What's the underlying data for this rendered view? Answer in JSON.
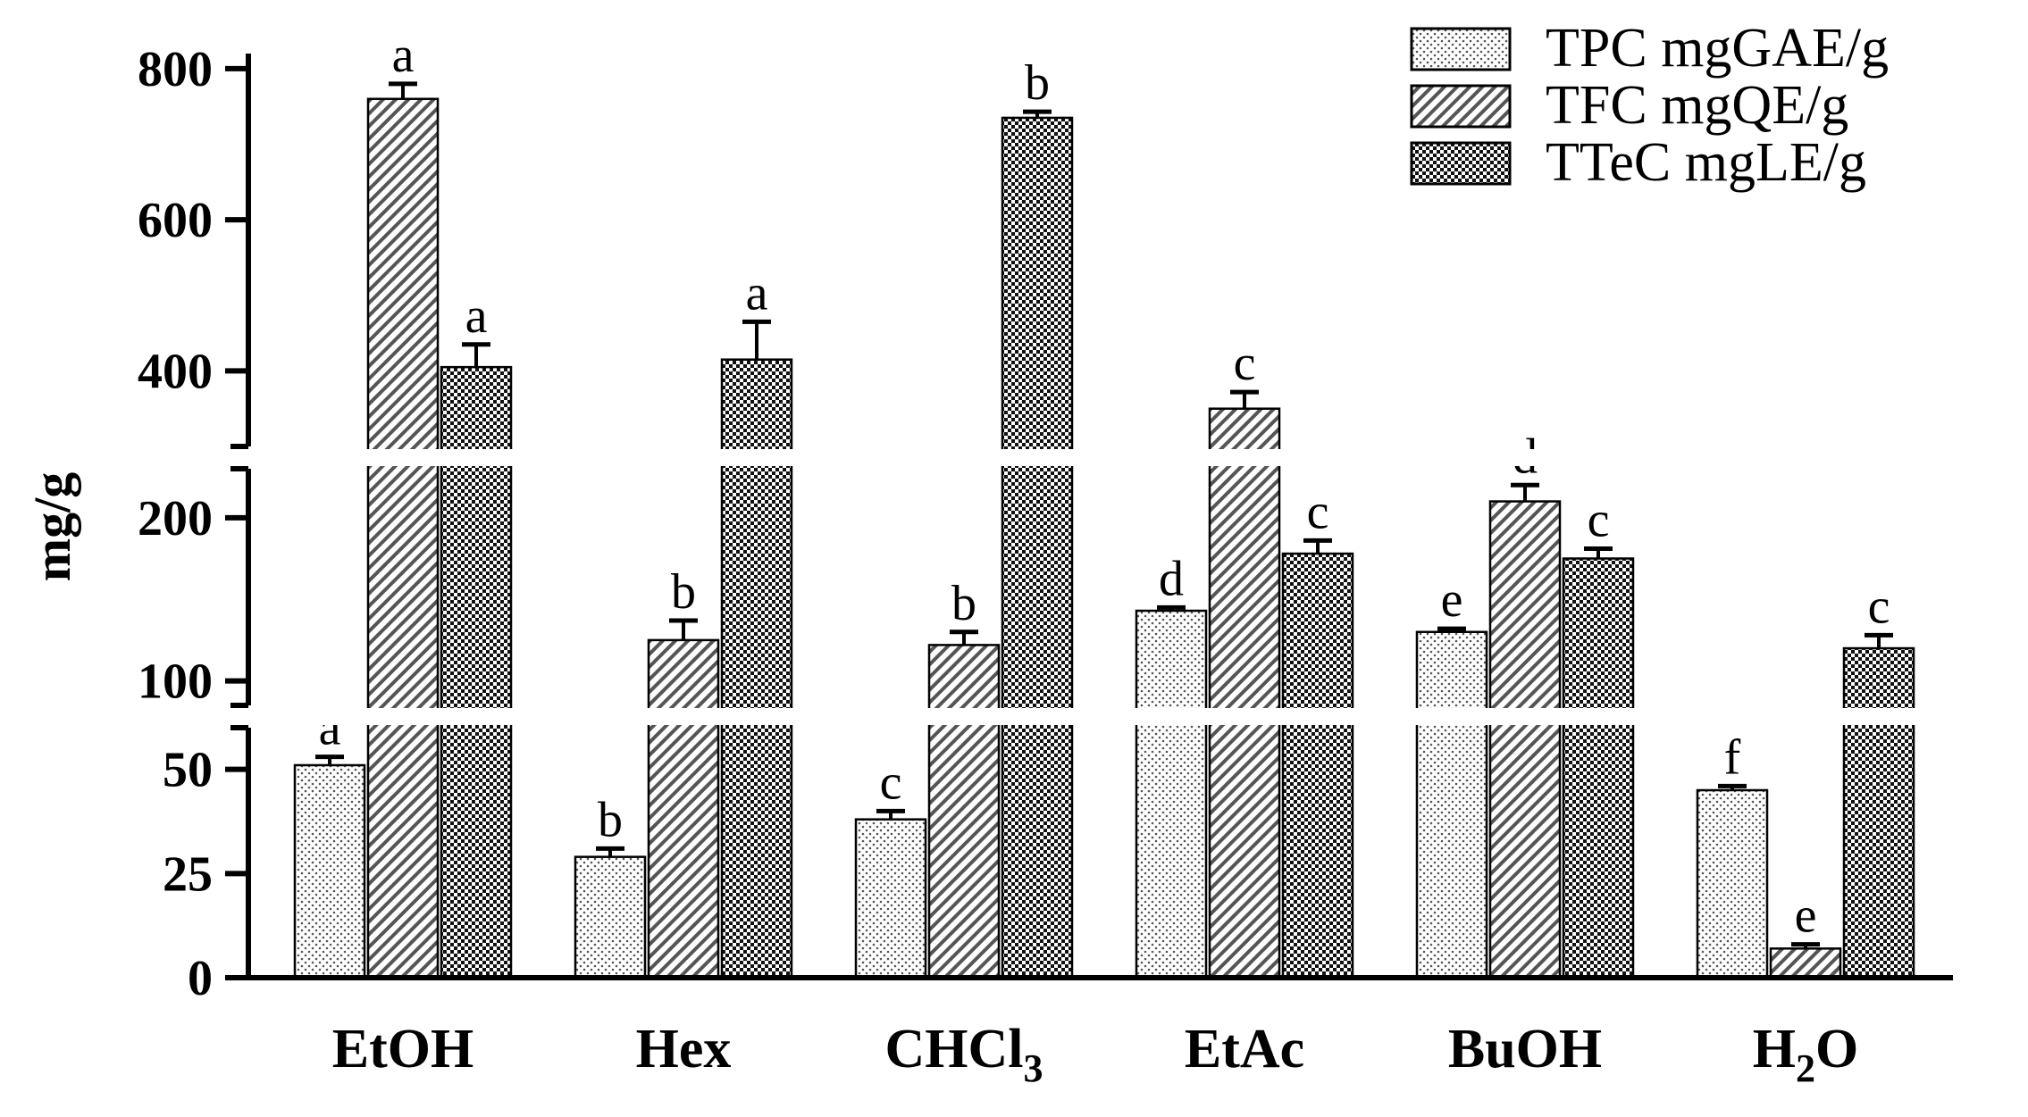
{
  "chart_data": {
    "type": "bar",
    "ylabel": "mg/g",
    "xlabel": "",
    "y_axis_breaks": [
      [
        60,
        100
      ],
      [
        220,
        300
      ]
    ],
    "y_segments": [
      {
        "range": [
          0,
          60
        ],
        "ticks": [
          0,
          25,
          50
        ]
      },
      {
        "range": [
          85,
          230
        ],
        "ticks": [
          100,
          200
        ]
      },
      {
        "range": [
          300,
          820
        ],
        "ticks": [
          400,
          600,
          800
        ]
      }
    ],
    "categories": [
      {
        "main": "EtOH",
        "sub": ""
      },
      {
        "main": "Hex",
        "sub": ""
      },
      {
        "main": "CHCl",
        "sub": "3"
      },
      {
        "main": "EtAc",
        "sub": ""
      },
      {
        "main": "BuOH",
        "sub": ""
      },
      {
        "main": "H",
        "sub": "2",
        "tail": "O"
      }
    ],
    "series": [
      {
        "name": "TPC mgGAE/g",
        "pattern": "dots",
        "values": [
          51,
          29,
          38,
          143,
          130,
          45
        ],
        "errors": [
          2,
          2,
          2,
          2,
          2,
          1
        ],
        "letters": [
          "a",
          "b",
          "c",
          "d",
          "e",
          "f"
        ]
      },
      {
        "name": "TFC mgQE/g",
        "pattern": "hatch",
        "values": [
          760,
          125,
          122,
          350,
          210,
          7
        ],
        "errors": [
          20,
          12,
          8,
          22,
          10,
          1
        ],
        "letters": [
          "a",
          "b",
          "b",
          "c",
          "d",
          "e"
        ]
      },
      {
        "name": "TTeC mgLE/g",
        "pattern": "checker",
        "values": [
          405,
          415,
          735,
          178,
          175,
          120
        ],
        "errors": [
          30,
          50,
          8,
          8,
          6,
          8
        ],
        "letters": [
          "a",
          "a",
          "b",
          "c",
          "c",
          "c"
        ]
      }
    ],
    "legend_position": "top-right",
    "grid": false
  }
}
